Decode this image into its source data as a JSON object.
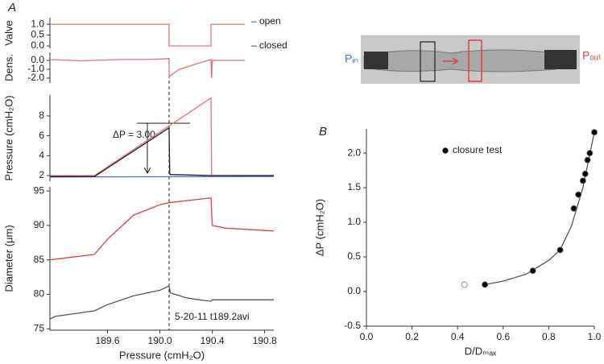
{
  "panel_labels": [
    "A",
    "B"
  ],
  "image_labels": {
    "inlet": "Pᵢₙ",
    "outlet": "Pₒᵤₜ"
  },
  "chart_data": [
    {
      "type": "line",
      "ylabel": "Valve",
      "annotations": [
        "– open",
        "– closed"
      ],
      "xlim": [
        189.16,
        190.87
      ],
      "ylim": [
        -0.11,
        1.3
      ],
      "yticks": [
        {
          "value": 1,
          "label": "1.0"
        },
        0.5,
        {
          "value": 0,
          "label": "0.0"
        }
      ],
      "series": [
        {
          "color": "#e0707a",
          "x": [
            189.16,
            190.07,
            190.07,
            190.39,
            190.39,
            190.65
          ],
          "values": [
            1,
            1,
            0,
            0,
            1,
            1
          ]
        }
      ]
    },
    {
      "type": "line",
      "ylabel": "Dens.",
      "xlim": [
        189.16,
        190.87
      ],
      "ylim": [
        -2.55,
        0.91
      ],
      "yticks": [
        {
          "value": 0,
          "label": "0.0"
        },
        {
          "value": -1,
          "label": "-1.0"
        },
        {
          "value": -2,
          "label": "-2.0"
        }
      ],
      "series": [
        {
          "color": "#e0707a",
          "x": [
            189.16,
            189.4,
            189.7,
            189.9,
            190.07,
            190.071,
            190.15,
            190.3,
            190.39,
            190.395,
            190.4,
            190.5,
            190.65
          ],
          "values": [
            0.1,
            -0.05,
            0.1,
            0.1,
            0.2,
            -1.8,
            -1.0,
            -0.3,
            0.1,
            -2.0,
            0,
            0,
            0
          ]
        }
      ]
    },
    {
      "type": "line",
      "ylabel": "Pressure (cmH₂O)",
      "annotation": "ΔP = 3.00",
      "xlim": [
        189.16,
        190.87
      ],
      "ylim": [
        1.43,
        10.1
      ],
      "yticks": [
        2,
        4,
        6,
        8
      ],
      "series": [
        {
          "color": "#e0707a",
          "x": [
            189.16,
            189.5,
            190.39,
            190.395,
            190.87
          ],
          "values": [
            2,
            2,
            9.8,
            2,
            2
          ]
        },
        {
          "color": "#4a6fd0",
          "x": [
            189.16,
            190.87
          ],
          "values": [
            1.85,
            1.9
          ]
        },
        {
          "color": "#222222",
          "x": [
            189.16,
            189.5,
            190.07,
            190.075,
            190.39,
            190.87
          ],
          "values": [
            1.9,
            1.9,
            6.8,
            2.1,
            2.0,
            2.0
          ]
        }
      ]
    },
    {
      "type": "line",
      "ylabel": "Diameter (μm)",
      "xlabel": "Pressure (cmH₂O)",
      "annotation": "5-20-11 t189.2avi",
      "xlim": [
        189.16,
        190.87
      ],
      "ylim": [
        74.8,
        95.6
      ],
      "xticks": [
        189.6,
        {
          "value": 190,
          "label": "190.0"
        },
        190.4,
        190.8
      ],
      "yticks": [
        75,
        80,
        85,
        90,
        95
      ],
      "series": [
        {
          "color": "#d9414d",
          "x": [
            189.16,
            189.5,
            189.6,
            189.8,
            190.0,
            190.07,
            190.39,
            190.4,
            190.5,
            190.87
          ],
          "values": [
            85,
            85.8,
            88,
            91.5,
            93,
            93.3,
            94,
            90,
            89.6,
            89.2
          ]
        },
        {
          "color": "#555555",
          "x": [
            189.16,
            189.2,
            189.5,
            189.6,
            189.8,
            190.0,
            190.07,
            190.08,
            190.2,
            190.3,
            190.39,
            190.4,
            190.87
          ],
          "values": [
            76.4,
            76.8,
            77.6,
            78.5,
            79.8,
            80.6,
            81.2,
            80.2,
            79.5,
            79.2,
            79.0,
            79.2,
            79.2
          ]
        }
      ]
    },
    {
      "type": "scatter",
      "xlabel": "D/Dₘₐₓ",
      "ylabel": "ΔP (cmH₂O)",
      "legend": "upper left",
      "xlim": [
        0,
        1
      ],
      "ylim": [
        -0.5,
        2.35
      ],
      "xticks": [
        {
          "value": 0,
          "label": "0.0"
        },
        0.2,
        0.4,
        0.6,
        0.8,
        {
          "value": 1,
          "label": "1.0"
        }
      ],
      "yticks": [
        -0.5,
        {
          "value": 0,
          "label": "0.0"
        },
        0.5,
        {
          "value": 1,
          "label": "1.0"
        },
        1.5,
        {
          "value": 2,
          "label": "2.0"
        }
      ],
      "series": [
        {
          "style": "line",
          "color": "#555555",
          "x": [
            0.52,
            0.6,
            0.7,
            0.8,
            0.85,
            0.9,
            0.95,
            1.0
          ],
          "values": [
            0.1,
            0.15,
            0.25,
            0.45,
            0.6,
            0.95,
            1.5,
            2.3
          ]
        },
        {
          "name": "closure test",
          "color": "#000000",
          "x": [
            0.52,
            0.73,
            0.85,
            0.91,
            0.93,
            0.95,
            0.96,
            0.97,
            0.98,
            1.0
          ],
          "values": [
            0.1,
            0.3,
            0.6,
            1.2,
            1.4,
            1.6,
            1.7,
            1.9,
            2.0,
            2.3
          ]
        },
        {
          "color": "#ffffff",
          "x": [
            0.43
          ],
          "values": [
            0.1
          ]
        }
      ]
    }
  ]
}
